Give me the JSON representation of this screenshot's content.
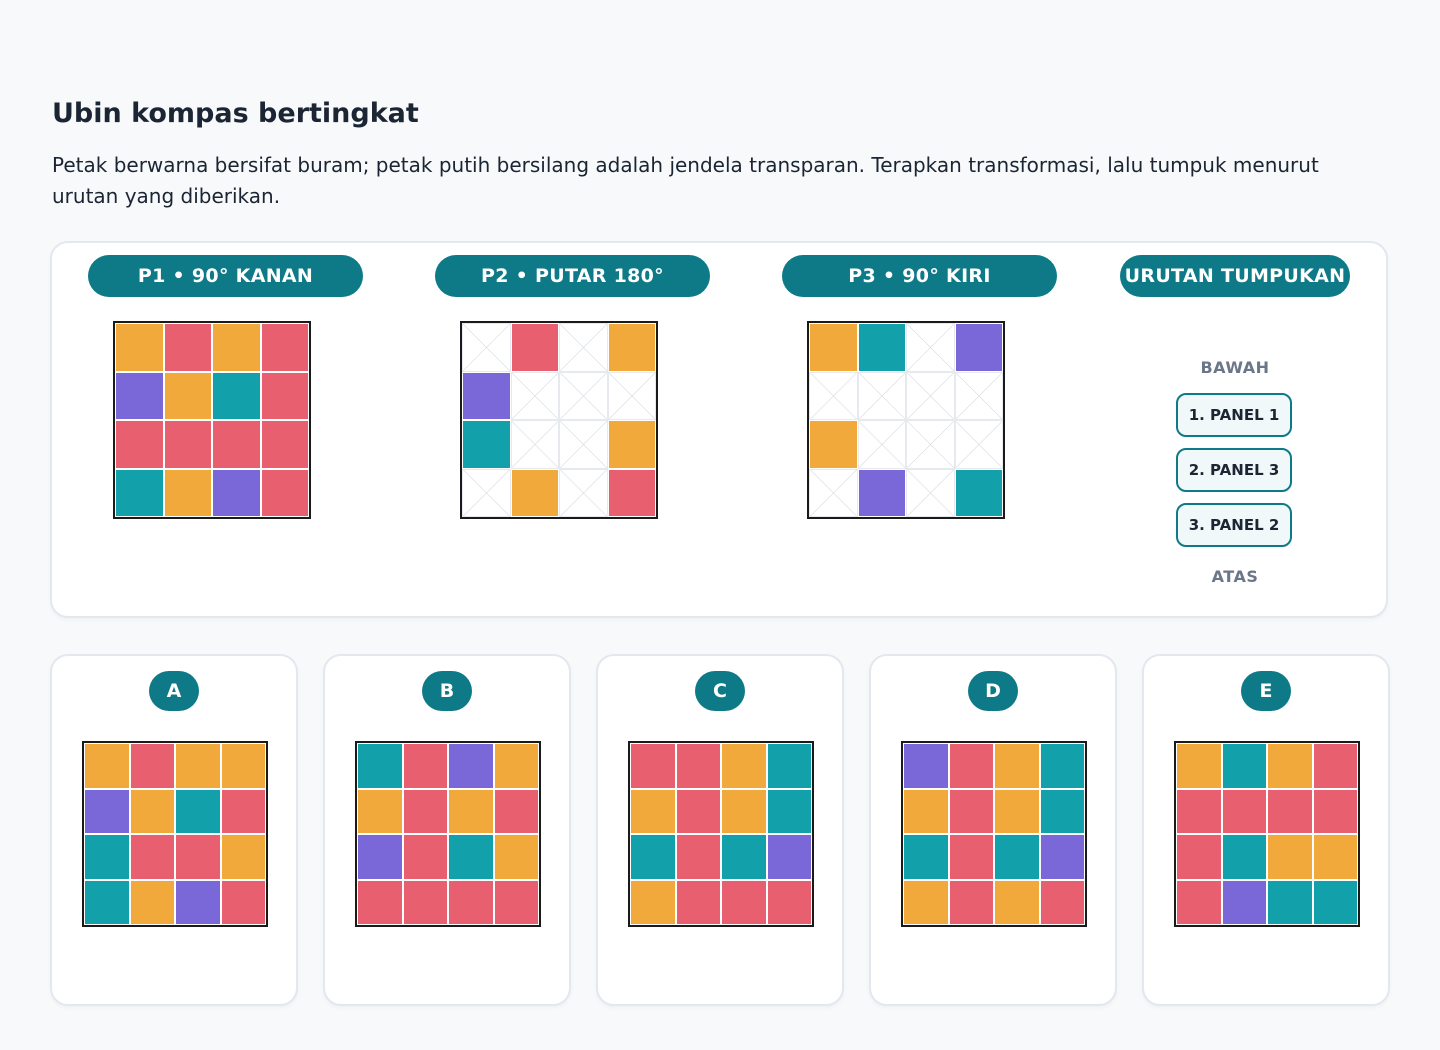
{
  "title": "Ubin kompas bertingkat",
  "description": "Petak berwarna bersifat buram; petak putih bersilang adalah jendela transparan. Terapkan transformasi, lalu tumpuk menurut urutan yang diberikan.",
  "colors": {
    "O": "#f2a93b",
    "R": "#e8606f",
    "P": "#7b68d8",
    "T": "#12a0ab",
    "accent": "#0e7a88"
  },
  "panels": [
    {
      "label": "P1 • 90° KANAN",
      "cells": [
        "O",
        "R",
        "O",
        "R",
        "P",
        "O",
        "T",
        "R",
        "R",
        "R",
        "R",
        "R",
        "T",
        "O",
        "P",
        "R"
      ]
    },
    {
      "label": "P2 • PUTAR 180°",
      "cells": [
        "W",
        "R",
        "W",
        "O",
        "P",
        "W",
        "W",
        "W",
        "T",
        "W",
        "W",
        "O",
        "W",
        "O",
        "W",
        "R"
      ]
    },
    {
      "label": "P3 • 90° KIRI",
      "cells": [
        "O",
        "T",
        "W",
        "P",
        "W",
        "W",
        "W",
        "W",
        "O",
        "W",
        "W",
        "W",
        "W",
        "P",
        "W",
        "T"
      ]
    }
  ],
  "stack": {
    "header": "URUTAN TUMPUKAN",
    "bottom_label": "BAWAH",
    "top_label": "ATAS",
    "items": [
      "1. PANEL 1",
      "2. PANEL 3",
      "3. PANEL 2"
    ]
  },
  "options": [
    {
      "label": "A",
      "cells": [
        "O",
        "R",
        "O",
        "O",
        "P",
        "O",
        "T",
        "R",
        "T",
        "R",
        "R",
        "O",
        "T",
        "O",
        "P",
        "R"
      ]
    },
    {
      "label": "B",
      "cells": [
        "T",
        "R",
        "P",
        "O",
        "O",
        "R",
        "O",
        "R",
        "P",
        "R",
        "T",
        "O",
        "R",
        "R",
        "R",
        "R"
      ]
    },
    {
      "label": "C",
      "cells": [
        "R",
        "R",
        "O",
        "T",
        "O",
        "R",
        "O",
        "T",
        "T",
        "R",
        "T",
        "P",
        "O",
        "R",
        "R",
        "R"
      ]
    },
    {
      "label": "D",
      "cells": [
        "P",
        "R",
        "O",
        "T",
        "O",
        "R",
        "O",
        "T",
        "T",
        "R",
        "T",
        "P",
        "O",
        "R",
        "O",
        "R"
      ]
    },
    {
      "label": "E",
      "cells": [
        "O",
        "T",
        "O",
        "R",
        "R",
        "R",
        "R",
        "R",
        "R",
        "T",
        "O",
        "O",
        "R",
        "P",
        "T",
        "T"
      ]
    }
  ]
}
